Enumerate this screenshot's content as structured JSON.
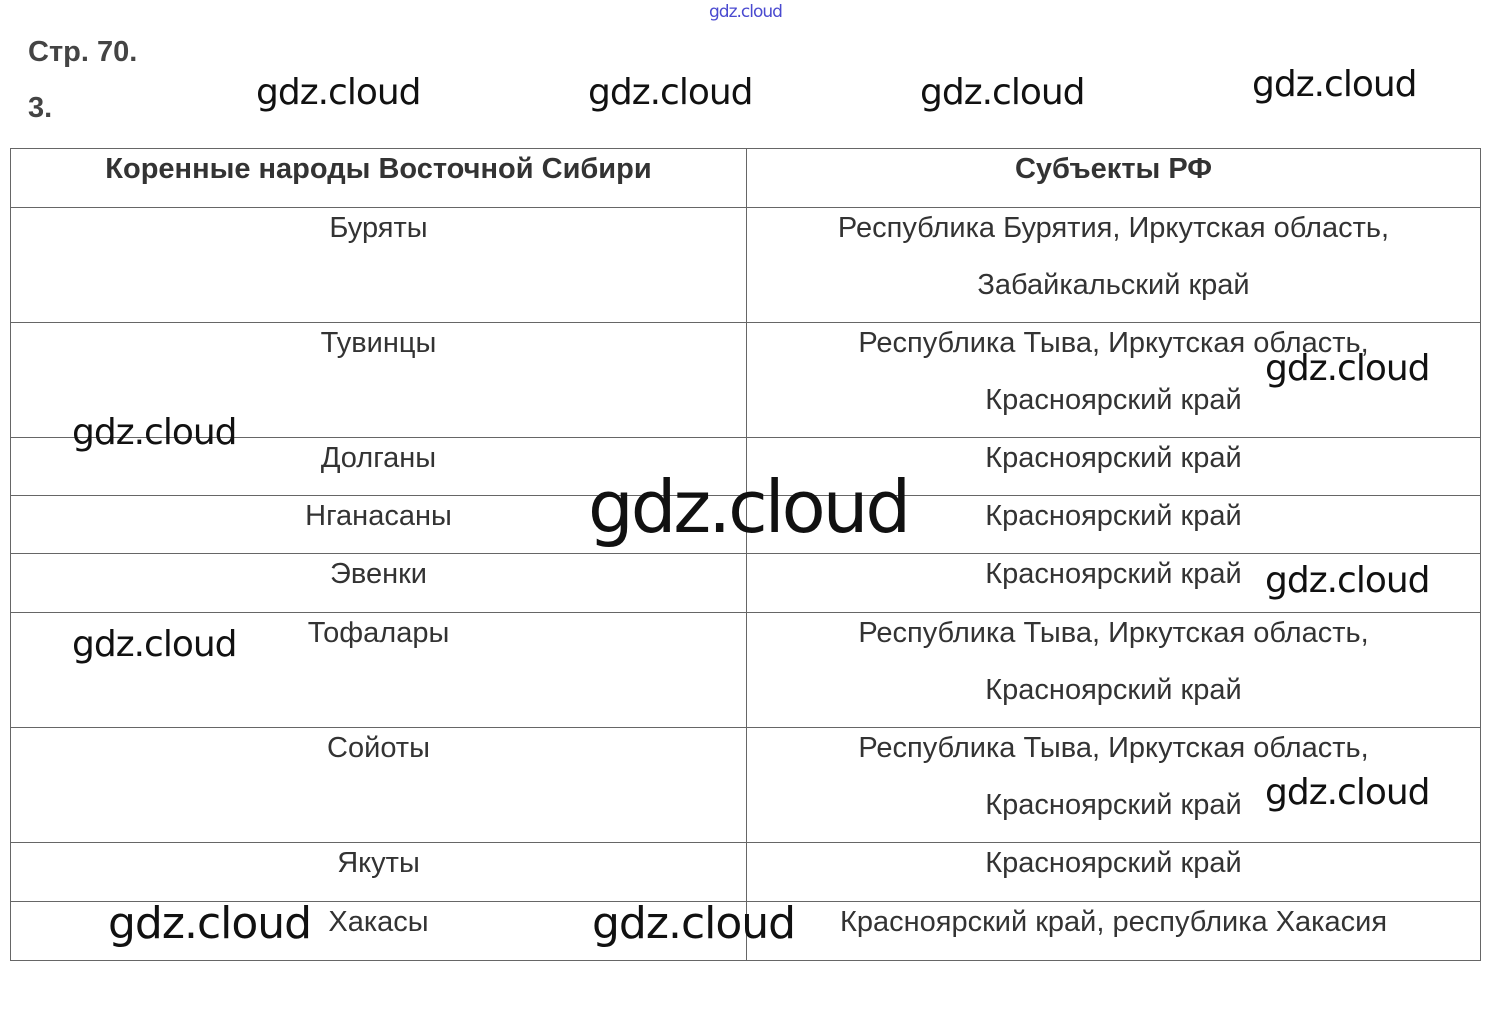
{
  "header_link": "gdz.cloud",
  "page_label": "Стр. 70.",
  "task_number": "3.",
  "table": {
    "columns": [
      "Коренные народы Восточной Сибири",
      "Субъекты РФ"
    ],
    "rows": [
      {
        "people": "Буряты",
        "subjects": [
          "Республика Бурятия, Иркутская область,",
          "Забайкальский край"
        ]
      },
      {
        "people": "Тувинцы",
        "subjects": [
          "Республика Тыва, Иркутская область,",
          "Красноярский край"
        ]
      },
      {
        "people": "Долганы",
        "subjects": [
          "Красноярский край"
        ]
      },
      {
        "people": "Нганасаны",
        "subjects": [
          "Красноярский край"
        ]
      },
      {
        "people": "Эвенки",
        "subjects": [
          "Красноярский край"
        ]
      },
      {
        "people": "Тофалары",
        "subjects": [
          "Республика Тыва, Иркутская область,",
          "Красноярский край"
        ]
      },
      {
        "people": "Сойоты",
        "subjects": [
          "Республика Тыва, Иркутская область,",
          "Красноярский край"
        ]
      },
      {
        "people": "Якуты",
        "subjects": [
          "Красноярский край"
        ]
      },
      {
        "people": "Хакасы",
        "subjects": [
          "Красноярский край, республика Хакасия"
        ]
      }
    ]
  },
  "watermark": "gdz.cloud"
}
